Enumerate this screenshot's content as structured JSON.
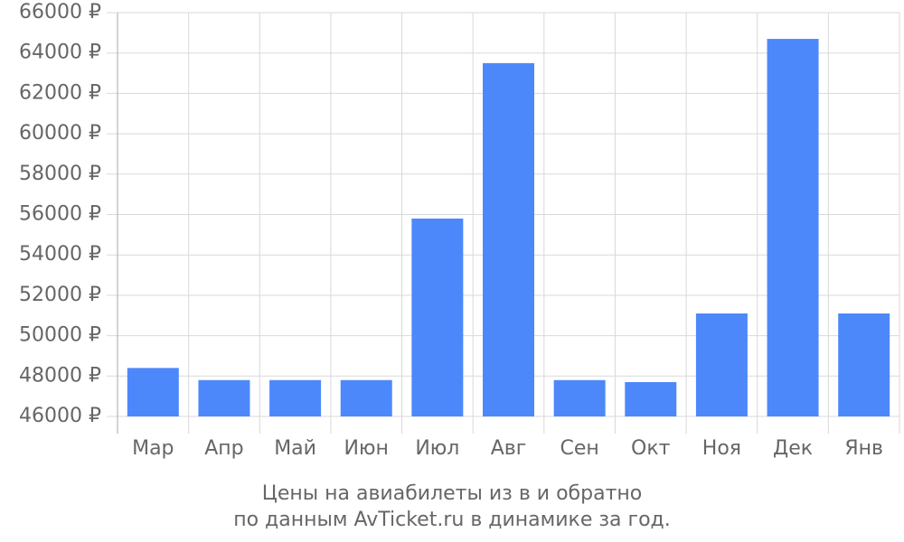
{
  "chart_data": {
    "type": "bar",
    "title": "Цены на авиабилеты из  в  и обратно",
    "subtitle": "по данным AvTicket.ru в динамике за год.",
    "categories": [
      "Мар",
      "Апр",
      "Май",
      "Июн",
      "Июл",
      "Авг",
      "Сен",
      "Окт",
      "Ноя",
      "Дек",
      "Янв"
    ],
    "values": [
      48400,
      47800,
      47800,
      47800,
      55800,
      63500,
      47800,
      47700,
      51100,
      64700,
      51100
    ],
    "color": "#4d88fb",
    "ylim": [
      46000,
      66000
    ],
    "yticks": [
      {
        "value": 46000,
        "label": "46000 ₽"
      },
      {
        "value": 48000,
        "label": "48000 ₽"
      },
      {
        "value": 50000,
        "label": "50000 ₽"
      },
      {
        "value": 52000,
        "label": "52000 ₽"
      },
      {
        "value": 54000,
        "label": "54000 ₽"
      },
      {
        "value": 56000,
        "label": "56000 ₽"
      },
      {
        "value": 58000,
        "label": "58000 ₽"
      },
      {
        "value": 60000,
        "label": "60000 ₽"
      },
      {
        "value": 62000,
        "label": "62000 ₽"
      },
      {
        "value": 64000,
        "label": "64000 ₽"
      },
      {
        "value": 66000,
        "label": "66000 ₽"
      }
    ],
    "grid": true
  }
}
